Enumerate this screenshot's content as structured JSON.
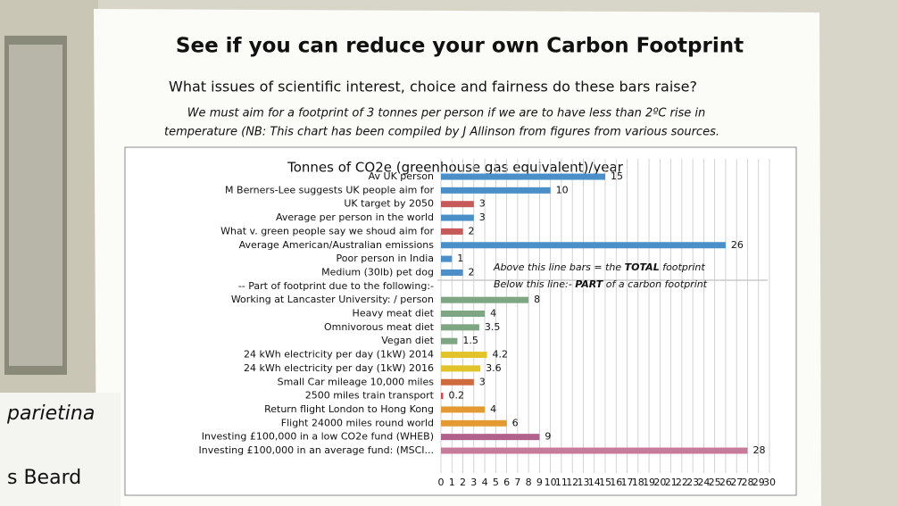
{
  "poster": {
    "title": "See if you can reduce your own Carbon Footprint",
    "subtitle": "What issues of scientific interest, choice and fairness do these bars raise?",
    "note_line1": "We must aim for a footprint of 3 tonnes per person if we are to have less than 2ºC rise in",
    "note_line2": "temperature (NB: This chart has been compiled by J Allinson from figures from various sources.",
    "side_label1": "parietina",
    "side_label2": "s Beard"
  },
  "chart_data": {
    "type": "barh",
    "title": "Tonnes of CO2e (greenhouse gas equivalent)/year",
    "categories": [
      "Av UK person",
      "M Berners-Lee suggests UK people aim for",
      "UK target by 2050",
      "Average per person in the world",
      "What v. green people say we shoud aim for",
      "Average American/Australian emissions",
      "Poor person in India",
      "Medium (30lb) pet dog",
      "-- Part of footprint due to the following:-",
      "Working at Lancaster University: / person",
      "Heavy meat diet",
      "Omnivorous meat diet",
      "Vegan diet",
      "24 kWh electricity  per day (1kW) 2014",
      "24 kWh electricity  per day (1kW) 2016",
      "Small Car mileage 10,000 miles",
      "2500 miles train transport",
      "Return flight London to Hong Kong",
      "Flight 24000 miles round world",
      "Investing £100,000 in a low CO2e  fund (WHEB)",
      "Investing £100,000 in an average fund: (MSCI..."
    ],
    "values": [
      15,
      10,
      3,
      3,
      2,
      26,
      1,
      2,
      null,
      8,
      4,
      3.5,
      1.5,
      4.2,
      3.6,
      3,
      0.2,
      4,
      6,
      9,
      28
    ],
    "colors": [
      "#4a8fc8",
      "#4a8fc8",
      "#c65a5a",
      "#4a8fc8",
      "#c65a5a",
      "#4a8fc8",
      "#4a8fc8",
      "#4a8fc8",
      null,
      "#7fa682",
      "#7fa682",
      "#7fa682",
      "#7fa682",
      "#e2c32a",
      "#e2c32a",
      "#cf6a3e",
      "#cf4a4a",
      "#e39a32",
      "#e39a32",
      "#b0628c",
      "#c87c9c"
    ],
    "xlim": [
      0,
      30
    ],
    "xticks": [
      0,
      1,
      2,
      3,
      4,
      5,
      6,
      7,
      8,
      9,
      10,
      11,
      12,
      13,
      14,
      15,
      16,
      17,
      18,
      19,
      20,
      21,
      22,
      23,
      24,
      25,
      26,
      27,
      28,
      29,
      30
    ],
    "grid": true,
    "annotations": [
      [
        "Above this line bars = the ",
        "TOTAL",
        " footprint"
      ],
      [
        "Below this line:- ",
        "PART",
        " of a carbon footprint"
      ]
    ]
  }
}
